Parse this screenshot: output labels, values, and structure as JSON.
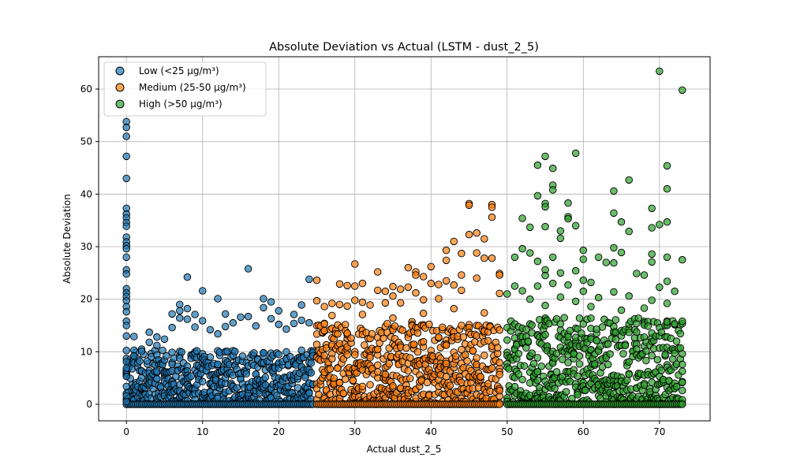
{
  "chart_data": {
    "type": "scatter",
    "title": "Absolute Deviation vs Actual (LSTM - dust_2_5)",
    "xlabel": "Actual dust_2_5",
    "ylabel": "Absolute Deviation",
    "xlim": [
      -3.65,
      76.65
    ],
    "ylim": [
      -3.15,
      66.15
    ],
    "xticks": [
      0,
      10,
      20,
      30,
      40,
      50,
      60,
      70
    ],
    "yticks": [
      0,
      10,
      20,
      30,
      40,
      50,
      60
    ],
    "grid": true,
    "legend_position": "top-left",
    "series": [
      {
        "name": "Low (<25 µg/m³)",
        "color": "#1f77b4",
        "points": [
          [
            0,
            53.8
          ],
          [
            0,
            52.7
          ],
          [
            0,
            51.0
          ],
          [
            0,
            47.2
          ],
          [
            0,
            43.0
          ],
          [
            0,
            37.3
          ],
          [
            0,
            36.2
          ],
          [
            0,
            35.5
          ],
          [
            0,
            34.6
          ],
          [
            0,
            33.9
          ],
          [
            0,
            31.8
          ],
          [
            0,
            30.9
          ],
          [
            0,
            30.2
          ],
          [
            0,
            29.6
          ],
          [
            0,
            28.0
          ],
          [
            0,
            25.6
          ],
          [
            0,
            24.8
          ],
          [
            0,
            22.0
          ],
          [
            0,
            21.2
          ],
          [
            0,
            20.5
          ],
          [
            0,
            19.7
          ],
          [
            0,
            18.6
          ],
          [
            0,
            17.6
          ],
          [
            0,
            15.8
          ],
          [
            0,
            15.0
          ],
          [
            0,
            13.0
          ],
          [
            0,
            8.1
          ],
          [
            0,
            6.9
          ],
          [
            0,
            5.3
          ],
          [
            0,
            3.4
          ],
          [
            0,
            1.6
          ],
          [
            0,
            0.5
          ],
          [
            1,
            12.9
          ],
          [
            1,
            10.3
          ],
          [
            1,
            9.2
          ],
          [
            2,
            10.5
          ],
          [
            2,
            10.1
          ],
          [
            3,
            13.7
          ],
          [
            3,
            11.8
          ],
          [
            4,
            12.8
          ],
          [
            4,
            11.2
          ],
          [
            5,
            12.4
          ],
          [
            6,
            14.6
          ],
          [
            6,
            17.2
          ],
          [
            7,
            19.0
          ],
          [
            7,
            17.8
          ],
          [
            7,
            16.4
          ],
          [
            8,
            24.2
          ],
          [
            8,
            18.2
          ],
          [
            8,
            16.2
          ],
          [
            9,
            17.1
          ],
          [
            9,
            14.7
          ],
          [
            10,
            21.6
          ],
          [
            10,
            15.9
          ],
          [
            11,
            14.2
          ],
          [
            12,
            20.1
          ],
          [
            12,
            13.4
          ],
          [
            13,
            17.2
          ],
          [
            13,
            14.8
          ],
          [
            14,
            15.5
          ],
          [
            15,
            16.6
          ],
          [
            16,
            25.8
          ],
          [
            16,
            16.7
          ],
          [
            17,
            14.9
          ],
          [
            18,
            20.1
          ],
          [
            18,
            18.4
          ],
          [
            19,
            16.3
          ],
          [
            19,
            19.5
          ],
          [
            20,
            15.2
          ],
          [
            20,
            17.8
          ],
          [
            21,
            14.3
          ],
          [
            22,
            17.1
          ],
          [
            22,
            15.4
          ],
          [
            23,
            16.0
          ],
          [
            23,
            18.9
          ],
          [
            24,
            23.8
          ],
          [
            24,
            15.5
          ]
        ]
      },
      {
        "name": "Medium (25-50 µg/m³)",
        "color": "#ff7f0e",
        "points": [
          [
            25,
            23.6
          ],
          [
            25,
            19.7
          ],
          [
            26,
            18.6
          ],
          [
            27,
            19.2
          ],
          [
            28,
            22.9
          ],
          [
            28,
            19.0
          ],
          [
            29,
            22.6
          ],
          [
            29,
            18.7
          ],
          [
            30,
            26.7
          ],
          [
            30,
            22.5
          ],
          [
            30,
            19.8
          ],
          [
            31,
            23.0
          ],
          [
            31,
            19.4
          ],
          [
            32,
            18.9
          ],
          [
            33,
            25.2
          ],
          [
            33,
            21.7
          ],
          [
            34,
            21.5
          ],
          [
            34,
            19.3
          ],
          [
            35,
            22.4
          ],
          [
            35,
            20.6
          ],
          [
            36,
            21.9
          ],
          [
            36,
            19.3
          ],
          [
            37,
            26.0
          ],
          [
            37,
            22.3
          ],
          [
            38,
            25.2
          ],
          [
            38,
            24.6
          ],
          [
            38,
            21.2
          ],
          [
            39,
            24.3
          ],
          [
            39,
            19.9
          ],
          [
            40,
            26.2
          ],
          [
            40,
            23.0
          ],
          [
            41,
            22.8
          ],
          [
            41,
            20.1
          ],
          [
            42,
            29.3
          ],
          [
            42,
            27.4
          ],
          [
            42,
            23.5
          ],
          [
            43,
            31.0
          ],
          [
            43,
            22.7
          ],
          [
            44,
            28.7
          ],
          [
            44,
            24.6
          ],
          [
            44,
            21.7
          ],
          [
            45,
            38.2
          ],
          [
            45,
            37.9
          ],
          [
            45,
            32.3
          ],
          [
            46,
            32.6
          ],
          [
            46,
            28.8
          ],
          [
            46,
            24.0
          ],
          [
            47,
            31.5
          ],
          [
            47,
            27.8
          ],
          [
            48,
            38.0
          ],
          [
            48,
            37.5
          ],
          [
            48,
            35.6
          ],
          [
            48,
            27.8
          ],
          [
            49,
            24.9
          ],
          [
            49,
            24.6
          ],
          [
            49,
            21.1
          ],
          [
            26,
            15.3
          ],
          [
            27,
            16.9
          ],
          [
            31,
            17.1
          ],
          [
            35,
            16.4
          ],
          [
            39,
            17.3
          ],
          [
            43,
            18.2
          ],
          [
            47,
            17.4
          ]
        ]
      },
      {
        "name": "High (>50 µg/m³)",
        "color": "#2ca02c",
        "points": [
          [
            70,
            63.4
          ],
          [
            73,
            59.8
          ],
          [
            59,
            47.8
          ],
          [
            55,
            47.2
          ],
          [
            54,
            45.5
          ],
          [
            71,
            45.4
          ],
          [
            56,
            44.9
          ],
          [
            66,
            42.7
          ],
          [
            56,
            41.7
          ],
          [
            71,
            41.0
          ],
          [
            56,
            40.8
          ],
          [
            64,
            40.6
          ],
          [
            54,
            39.7
          ],
          [
            55,
            38.2
          ],
          [
            58,
            38.3
          ],
          [
            55,
            37.6
          ],
          [
            69,
            37.3
          ],
          [
            64,
            36.4
          ],
          [
            58,
            35.7
          ],
          [
            58,
            35.3
          ],
          [
            52,
            35.4
          ],
          [
            65,
            34.7
          ],
          [
            71,
            34.7
          ],
          [
            70,
            34.2
          ],
          [
            55,
            33.8
          ],
          [
            57,
            33.0
          ],
          [
            59,
            34.0
          ],
          [
            69,
            33.6
          ],
          [
            53,
            33.7
          ],
          [
            66,
            32.9
          ],
          [
            57,
            31.6
          ],
          [
            60,
            29.3
          ],
          [
            64,
            29.8
          ],
          [
            52,
            29.6
          ],
          [
            65,
            28.9
          ],
          [
            51,
            28.0
          ],
          [
            53,
            28.8
          ],
          [
            56,
            28.0
          ],
          [
            62,
            28.0
          ],
          [
            69,
            28.6
          ],
          [
            71,
            28.0
          ],
          [
            73,
            27.5
          ],
          [
            54,
            27.2
          ],
          [
            60,
            27.6
          ],
          [
            63,
            27.0
          ],
          [
            64,
            26.9
          ],
          [
            69,
            27.1
          ],
          [
            55,
            25.6
          ],
          [
            57,
            25.0
          ],
          [
            59,
            25.4
          ],
          [
            67,
            24.9
          ],
          [
            55,
            24.5
          ],
          [
            60,
            23.6
          ],
          [
            61,
            23.2
          ],
          [
            68,
            24.6
          ],
          [
            51,
            22.5
          ],
          [
            52,
            21.6
          ],
          [
            54,
            22.5
          ],
          [
            56,
            23.0
          ],
          [
            58,
            22.7
          ],
          [
            60,
            21.5
          ],
          [
            64,
            21.4
          ],
          [
            71,
            23.4
          ],
          [
            72,
            21.5
          ],
          [
            50,
            21.0
          ],
          [
            53,
            20.0
          ],
          [
            57,
            20.4
          ],
          [
            59,
            19.6
          ],
          [
            62,
            20.3
          ],
          [
            66,
            20.6
          ],
          [
            69,
            19.8
          ],
          [
            70,
            22.3
          ],
          [
            55,
            18.8
          ],
          [
            61,
            18.6
          ],
          [
            65,
            17.9
          ],
          [
            68,
            18.3
          ],
          [
            71,
            19.2
          ],
          [
            73,
            15.8
          ]
        ]
      }
    ],
    "dense_band": {
      "Low (<25 µg/m³)": {
        "x_range": [
          0,
          24.5
        ],
        "y_max": 10.3
      },
      "Medium (25-50 µg/m³)": {
        "x_range": [
          25,
          49
        ],
        "y_max": 15.8
      },
      "High (>50 µg/m³)": {
        "x_range": [
          50,
          73
        ],
        "y_max": 16.5
      }
    }
  }
}
